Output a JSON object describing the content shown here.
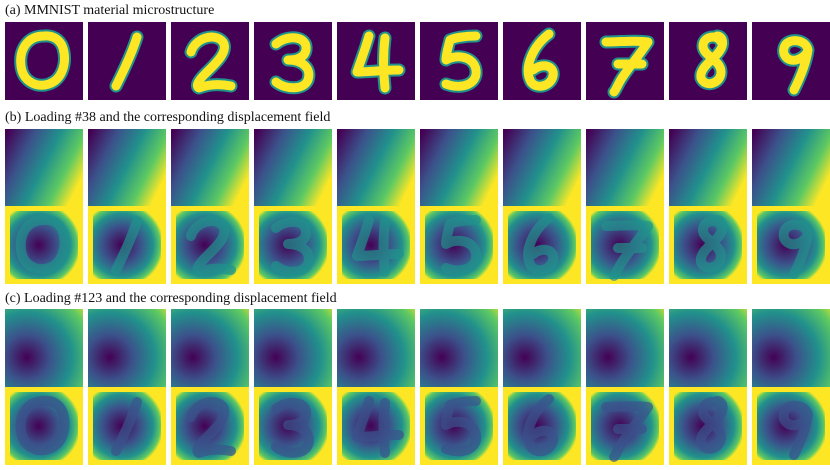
{
  "figure": {
    "captions": {
      "a": "(a) MMNIST material microstructure",
      "b": "(b) Loading #38 and the corresponding displacement field",
      "c": "(c) Loading #123 and the corresponding displacement field"
    },
    "digits": [
      "0",
      "1",
      "2",
      "3",
      "4",
      "5",
      "6",
      "7",
      "8",
      "9"
    ],
    "colors": {
      "viridis_dark": "#440154",
      "viridis_blue": "#3b528b",
      "viridis_teal": "#21918c",
      "viridis_green": "#5ec962",
      "viridis_yellow": "#fde725"
    }
  }
}
